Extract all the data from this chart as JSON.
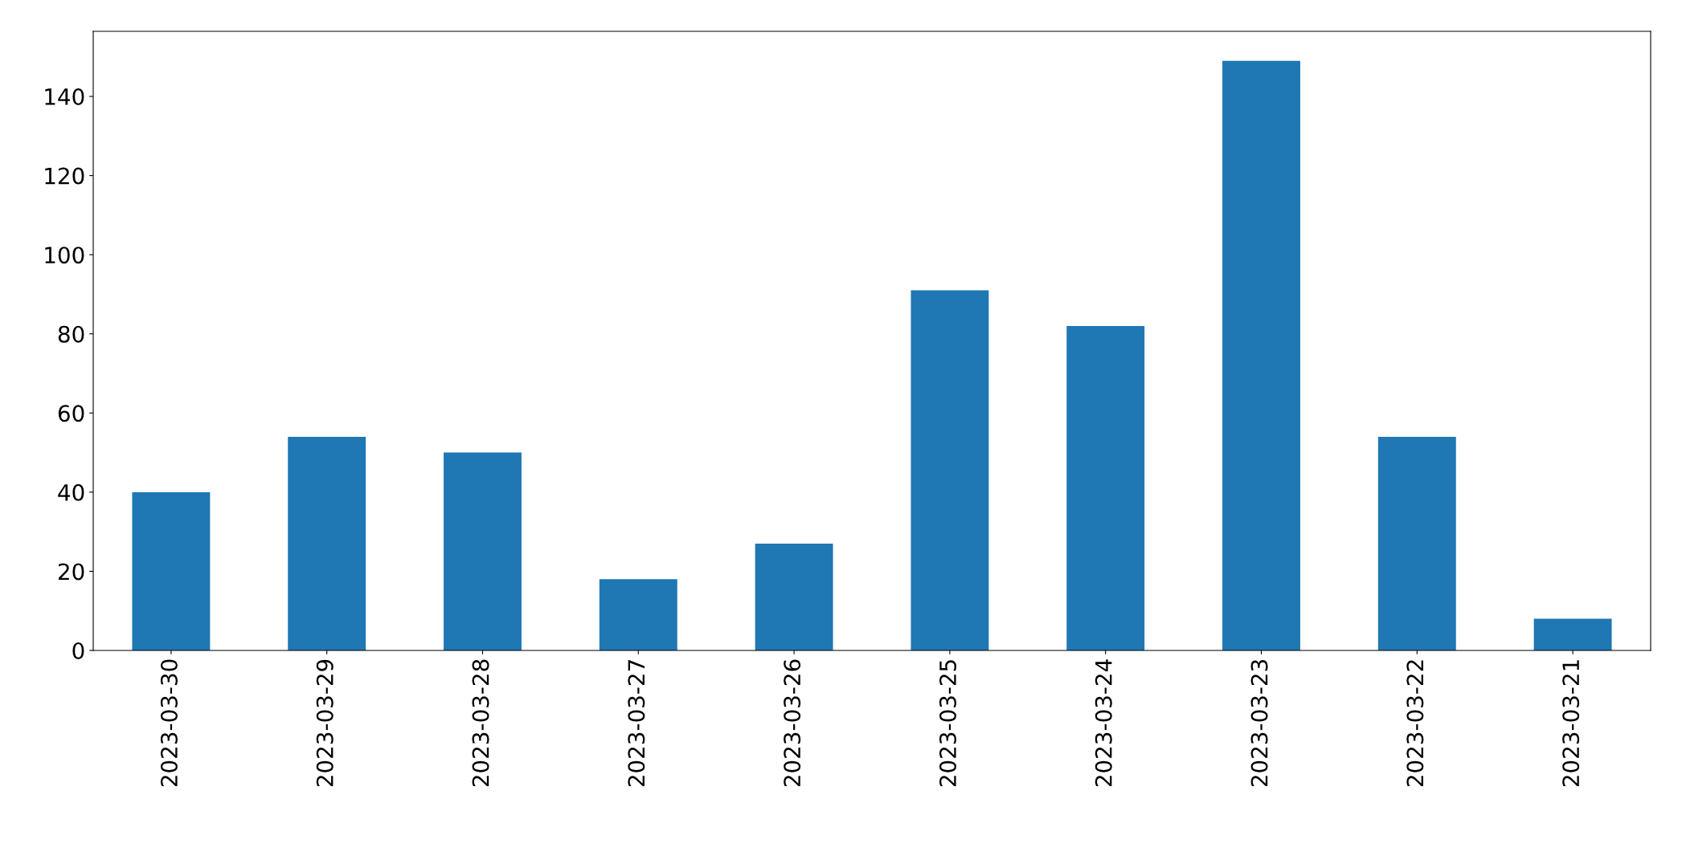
{
  "chart_data": {
    "type": "bar",
    "categories": [
      "2023-03-30",
      "2023-03-29",
      "2023-03-28",
      "2023-03-27",
      "2023-03-26",
      "2023-03-25",
      "2023-03-24",
      "2023-03-23",
      "2023-03-22",
      "2023-03-21"
    ],
    "values": [
      40,
      54,
      50,
      18,
      27,
      91,
      82,
      149,
      54,
      8
    ],
    "color": "#1f77b4",
    "ylim": [
      0,
      156.45
    ],
    "yticks": [
      0,
      20,
      40,
      60,
      80,
      100,
      120,
      140
    ],
    "grid": false,
    "legend": false
  }
}
